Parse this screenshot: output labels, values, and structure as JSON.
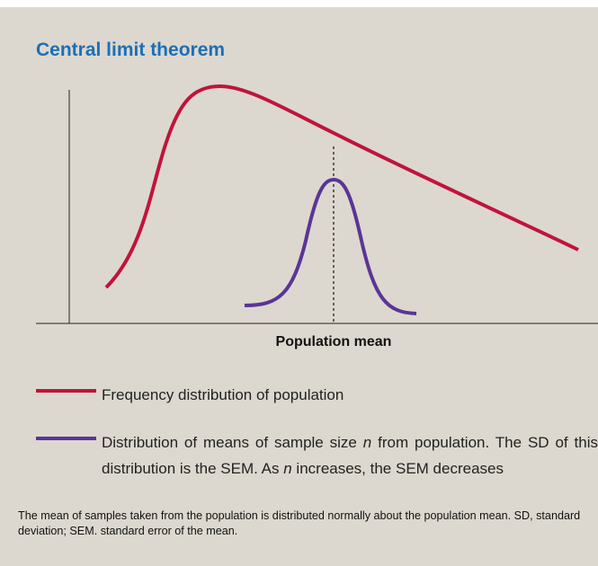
{
  "title": "Central limit theorem",
  "axis_label": "Population mean",
  "legend": [
    {
      "parts": [
        "Frequency distribution of population"
      ]
    },
    {
      "parts": [
        "Distribution of means of sample size",
        "n",
        "from population. The SD of this distribution is the SEM. As",
        "n",
        "increases, the SEM decreases"
      ]
    }
  ],
  "caption": "The mean of samples taken from the population is distributed normally about the population mean. SD, standard deviation; SEM. standard error of the mean."
}
